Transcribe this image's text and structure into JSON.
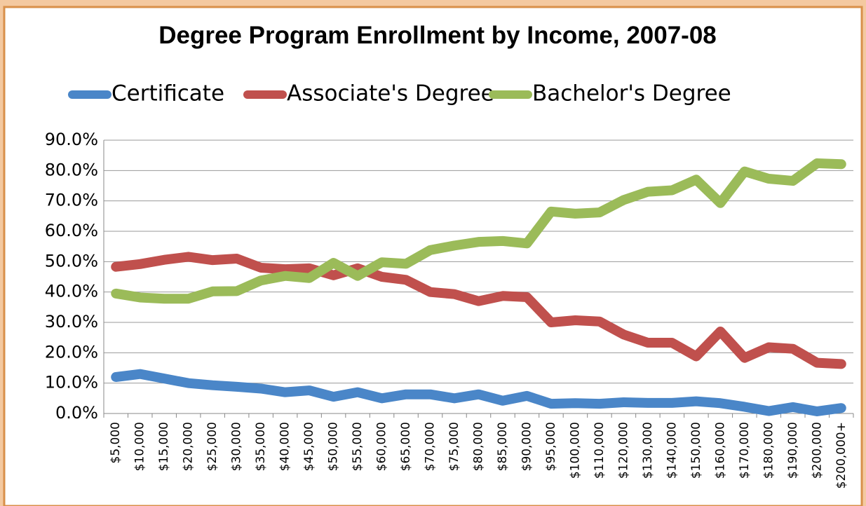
{
  "chart_data": {
    "type": "line",
    "title": "Degree Program Enrollment by Income, 2007-08",
    "categories": [
      "$5,000",
      "$10,000",
      "$15,000",
      "$20,000",
      "$25,000",
      "$30,000",
      "$35,000",
      "$40,000",
      "$45,000",
      "$50,000",
      "$55,000",
      "$60,000",
      "$65,000",
      "$70,000",
      "$75,000",
      "$80,000",
      "$85,000",
      "$90,000",
      "$95,000",
      "$100,000",
      "$110,000",
      "$120,000",
      "$130,000",
      "$140,000",
      "$150,000",
      "$160,000",
      "$170,000",
      "$180,000",
      "$190,000",
      "$200,000",
      "$200,000+"
    ],
    "series": [
      {
        "name": "Certificate",
        "color": "#4a86c8",
        "values": [
          12,
          13,
          11.5,
          10,
          9.3,
          8.8,
          8.2,
          7,
          7.6,
          5.5,
          7,
          5,
          6.3,
          6.3,
          5,
          6.3,
          4.2,
          5.8,
          3.2,
          3.4,
          3.2,
          3.7,
          3.5,
          3.5,
          4,
          3.4,
          2.2,
          0.8,
          2.1,
          0.7,
          1.8
        ]
      },
      {
        "name": "Associate's Degree",
        "color": "#c0504d",
        "values": [
          48.3,
          49.2,
          50.6,
          51.6,
          50.5,
          51,
          48,
          47.5,
          47.8,
          45.5,
          47.8,
          45,
          44,
          40,
          39.3,
          37,
          38.7,
          38.3,
          30,
          30.7,
          30.3,
          26,
          23.3,
          23.3,
          18.8,
          27,
          18.3,
          21.8,
          21.3,
          16.7,
          16.3
        ]
      },
      {
        "name": "Bachelor's Degree",
        "color": "#9bbb59",
        "values": [
          39.5,
          38.2,
          37.8,
          37.8,
          40.2,
          40.3,
          43.8,
          45.3,
          44.6,
          49.6,
          45.3,
          49.8,
          49.3,
          53.8,
          55.3,
          56.5,
          56.8,
          56,
          66.5,
          65.8,
          66.2,
          70.3,
          73,
          73.5,
          77,
          69.3,
          79.7,
          77.3,
          76.6,
          82.4,
          82.1
        ]
      }
    ],
    "ylim": [
      0,
      90
    ],
    "yticks": [
      {
        "value": 0,
        "label": "0.0%"
      },
      {
        "value": 10,
        "label": "10.0%"
      },
      {
        "value": 20,
        "label": "20.0%"
      },
      {
        "value": 30,
        "label": "30.0%"
      },
      {
        "value": 40,
        "label": "40.0%"
      },
      {
        "value": 50,
        "label": "50.0%"
      },
      {
        "value": 60,
        "label": "60.0%"
      },
      {
        "value": 70,
        "label": "70.0%"
      },
      {
        "value": 80,
        "label": "80.0%"
      },
      {
        "value": 90,
        "label": "90.0%"
      }
    ],
    "grid": true,
    "legend": "top"
  }
}
